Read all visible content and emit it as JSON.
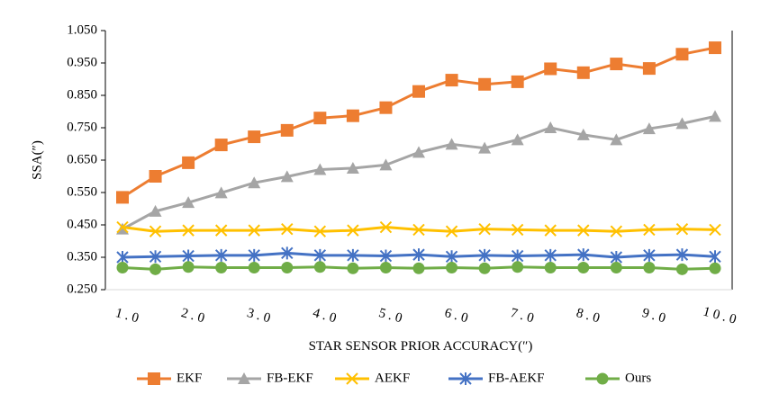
{
  "chart_data": {
    "type": "line",
    "title": "",
    "xlabel": "STAR SENSOR PRIOR ACCURACY(″)",
    "ylabel": "SSA(″)",
    "ylim": [
      0.25,
      1.05
    ],
    "yticks": [
      "0.250",
      "0.350",
      "0.450",
      "0.550",
      "0.650",
      "0.750",
      "0.850",
      "0.950",
      "1.050"
    ],
    "x": [
      1.0,
      1.5,
      2.0,
      2.5,
      3.0,
      3.5,
      4.0,
      4.5,
      5.0,
      5.5,
      6.0,
      6.5,
      7.0,
      7.5,
      8.0,
      8.5,
      9.0,
      9.5,
      10.0
    ],
    "xticks": [
      "1.0",
      "2.0",
      "3.0",
      "4.0",
      "5.0",
      "6.0",
      "7.0",
      "8.0",
      "9.0",
      "10.0"
    ],
    "grid": false,
    "legend_position": "bottom",
    "series": [
      {
        "name": "EKF",
        "color": "#ED7D31",
        "marker": "square",
        "values": [
          0.535,
          0.6,
          0.642,
          0.697,
          0.722,
          0.742,
          0.78,
          0.787,
          0.812,
          0.862,
          0.897,
          0.884,
          0.892,
          0.932,
          0.92,
          0.947,
          0.933,
          0.977,
          0.997
        ]
      },
      {
        "name": "FB-EKF",
        "color": "#A5A5A5",
        "marker": "triangle",
        "values": [
          0.437,
          0.492,
          0.519,
          0.549,
          0.58,
          0.599,
          0.621,
          0.625,
          0.635,
          0.674,
          0.699,
          0.687,
          0.713,
          0.75,
          0.728,
          0.713,
          0.747,
          0.763,
          0.785
        ]
      },
      {
        "name": "AEKF",
        "color": "#FFC000",
        "marker": "x",
        "values": [
          0.443,
          0.43,
          0.433,
          0.433,
          0.433,
          0.437,
          0.43,
          0.433,
          0.443,
          0.435,
          0.43,
          0.437,
          0.435,
          0.433,
          0.433,
          0.43,
          0.435,
          0.437,
          0.435
        ]
      },
      {
        "name": "FB-AEKF",
        "color": "#4472C4",
        "marker": "asterisk",
        "values": [
          0.35,
          0.352,
          0.354,
          0.356,
          0.356,
          0.363,
          0.356,
          0.356,
          0.354,
          0.358,
          0.352,
          0.356,
          0.354,
          0.356,
          0.358,
          0.35,
          0.356,
          0.358,
          0.352
        ]
      },
      {
        "name": "Ours",
        "color": "#70AD47",
        "marker": "circle",
        "values": [
          0.318,
          0.313,
          0.32,
          0.318,
          0.318,
          0.318,
          0.32,
          0.316,
          0.318,
          0.316,
          0.318,
          0.316,
          0.32,
          0.318,
          0.318,
          0.318,
          0.318,
          0.313,
          0.316
        ]
      }
    ]
  }
}
